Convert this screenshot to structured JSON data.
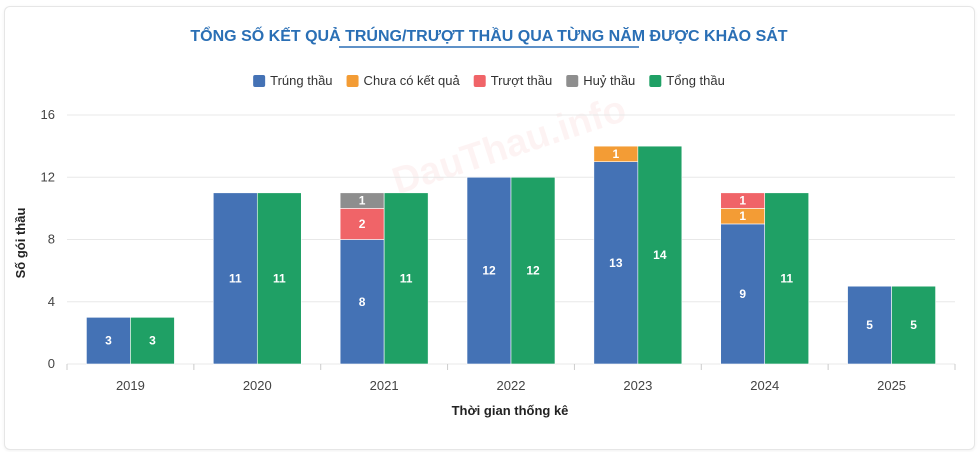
{
  "chart_data": {
    "type": "bar",
    "stacked": true,
    "title": "TỔNG SỐ KẾT QUẢ TRÚNG/TRƯỢT THẦU QUA TỪNG NĂM ĐƯỢC KHẢO SÁT",
    "xlabel": "Thời gian thống kê",
    "ylabel": "Số gói thầu",
    "ylim": [
      0,
      16
    ],
    "yticks": [
      0,
      4,
      8,
      12,
      16
    ],
    "grid": true,
    "legend_position": "top-center",
    "watermark": "DauThau.info",
    "categories": [
      "2019",
      "2020",
      "2021",
      "2022",
      "2023",
      "2024",
      "2025"
    ],
    "stacked_series": [
      {
        "name": "Trúng thầu",
        "color": "#4472b5",
        "values": [
          3,
          11,
          8,
          12,
          13,
          9,
          5
        ]
      },
      {
        "name": "Chưa có kết quả",
        "color": "#f39c35",
        "values": [
          0,
          0,
          0,
          0,
          1,
          1,
          0
        ]
      },
      {
        "name": "Trượt thầu",
        "color": "#f06468",
        "values": [
          0,
          0,
          2,
          0,
          0,
          1,
          0
        ]
      },
      {
        "name": "Huỷ thầu",
        "color": "#8e8e8e",
        "values": [
          0,
          0,
          1,
          0,
          0,
          0,
          0
        ]
      }
    ],
    "total_series": {
      "name": "Tổng thầu",
      "color": "#1fa065",
      "values": [
        3,
        11,
        11,
        12,
        14,
        11,
        5
      ]
    }
  }
}
